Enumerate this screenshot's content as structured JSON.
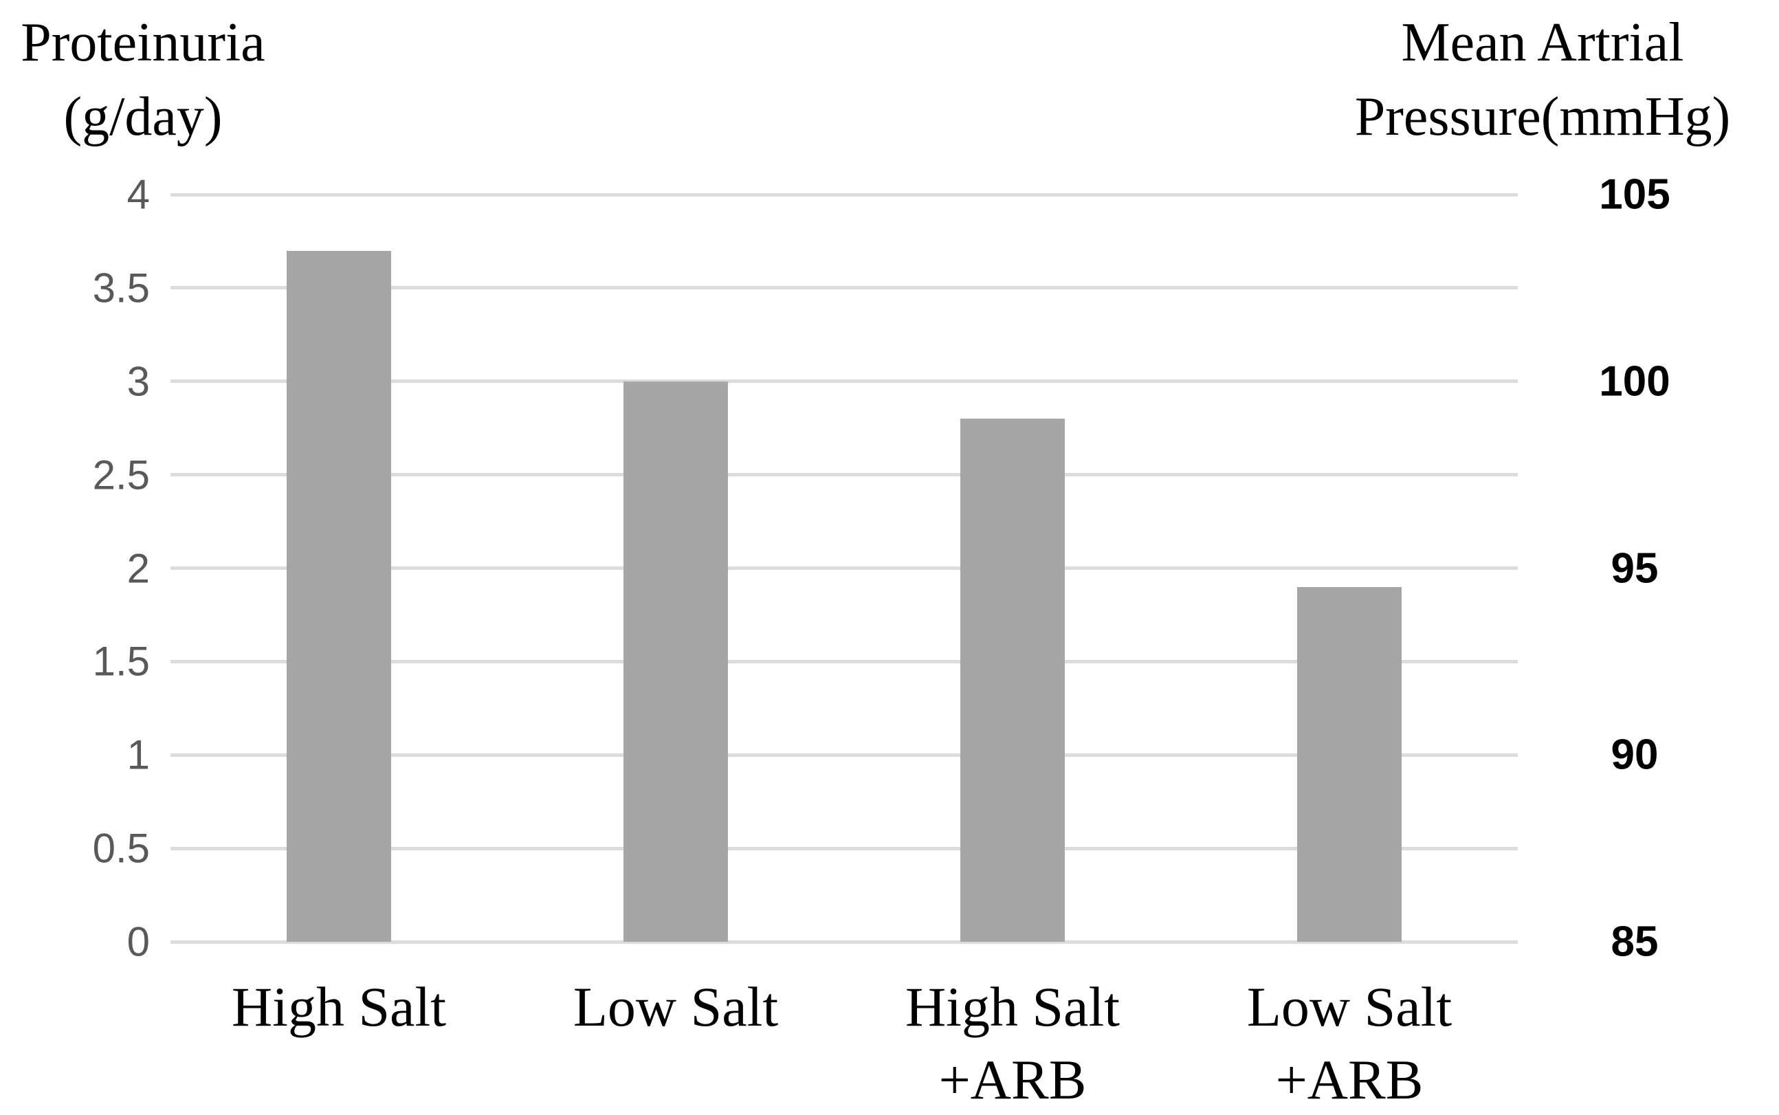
{
  "chart_data": {
    "type": "bar",
    "title": "",
    "categories": [
      "High Salt",
      "Low Salt",
      "High Salt +ARB",
      "Low Salt +ARB"
    ],
    "category_label_lines": [
      [
        "High Salt"
      ],
      [
        "Low Salt"
      ],
      [
        "High Salt",
        "+ARB"
      ],
      [
        "Low Salt",
        "+ARB"
      ]
    ],
    "series": [
      {
        "name": "Proteinuria",
        "values": [
          3.7,
          3.0,
          2.8,
          1.9
        ]
      }
    ],
    "left_axis": {
      "label_lines": [
        "Proteinuria",
        "(g/day)"
      ],
      "label_text": "Proteinuria (g/day)",
      "min": 0,
      "max": 4,
      "tick_step": 0.5,
      "tick_labels": [
        "0",
        "0.5",
        "1",
        "1.5",
        "2",
        "2.5",
        "3",
        "3.5",
        "4"
      ]
    },
    "right_axis": {
      "label_lines": [
        "Mean Artrial",
        "Pressure(mmHg)"
      ],
      "label_text": "Mean Artrial Pressure(mmHg)",
      "min": 85,
      "max": 105,
      "tick_step": 5,
      "tick_labels": [
        "85",
        "90",
        "95",
        "100",
        "105"
      ]
    },
    "grid": true,
    "legend": false,
    "colors": {
      "bar": "#a6a6a6",
      "gridline": "#dcdcdc",
      "left_tick_text": "#595959",
      "right_tick_text": "#000000",
      "text": "#000000",
      "background": "#ffffff"
    }
  }
}
